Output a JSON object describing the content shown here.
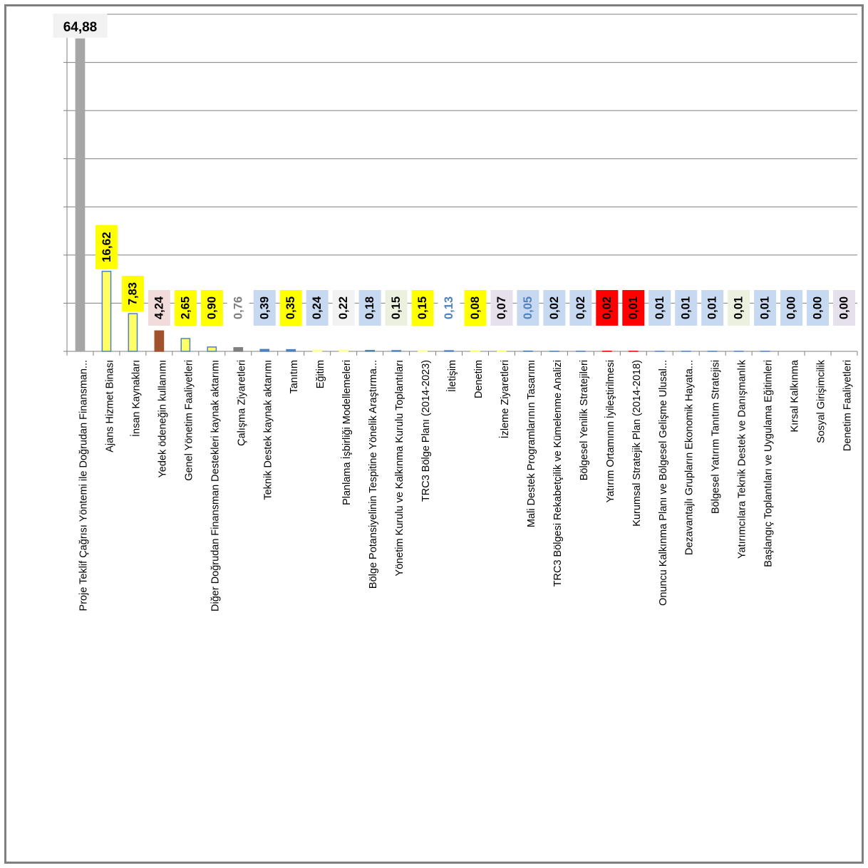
{
  "chart_data": {
    "type": "bar",
    "title": "",
    "xlabel": "",
    "ylabel": "",
    "ylim": [
      0,
      70
    ],
    "grid": true,
    "legend": "none",
    "categories": [
      "Proje Teklif Çağrısı Yöntemi ile Doğrudan Finansman...",
      "Ajans Hizmet Binası",
      "İnsan Kaynakları",
      "Yedek ödeneğin kullanımı",
      "Genel Yönetim Faaliyetleri",
      "Diğer Doğrudan Finansman Destekleri kaynak aktarımı",
      "Çalışma Ziyaretleri",
      "Teknik Destek kaynak aktarımı",
      "Tanıtım",
      "Eğitim",
      "Planlama İşbirliği Modellemeleri",
      "Bölge Potansiyelinin Tespitine Yönelik Araştırma...",
      "Yönetim Kurulu ve Kalkınma Kurulu Toplantıları",
      "TRC3 Bölge Planı (2014-2023)",
      "İletişim",
      "Denetim",
      "İzleme Ziyaretleri",
      "Mali Destek Programlarının Tasarımı",
      "TRC3 Bölgesi Rekabetçilik ve Kümelenme Analizi",
      "Bölgesel Yenilik Stratejileri",
      "Yatırım Ortamının İyileştirilmesi",
      "Kurumsal Stratejik Plan (2014-2018)",
      "Onuncu Kalkınma Planı ve Bölgesel Gelişme Ulusal...",
      "Dezavantajlı Grupların Ekonomik Hayata...",
      "Bölgesel Yatırım Tanıtım Stratejisi",
      "Yatırımcılara Teknik Destek ve Danışmanlık",
      "Başlangıç Toplantıları ve Uygulama Eğitimleri",
      "Kırsal Kalkınma",
      "Sosyal Girişimcilik",
      "Denetim Faaliyetleri"
    ],
    "values": [
      64.88,
      16.62,
      7.83,
      4.24,
      2.65,
      0.9,
      0.76,
      0.39,
      0.35,
      0.24,
      0.22,
      0.18,
      0.15,
      0.15,
      0.13,
      0.08,
      0.07,
      0.05,
      0.02,
      0.02,
      0.02,
      0.01,
      0.01,
      0.01,
      0.01,
      0.01,
      0.01,
      0.0,
      0.0,
      0.0
    ],
    "data_labels": [
      "64,88",
      "16,62",
      "7,83",
      "4,24",
      "2,65",
      "0,90",
      "0,76",
      "0,39",
      "0,35",
      "0,24",
      "0,22",
      "0,18",
      "0,15",
      "0,15",
      "0,13",
      "0,08",
      "0,07",
      "0,05",
      "0,02",
      "0,02",
      "0,02",
      "0,01",
      "0,01",
      "0,01",
      "0,01",
      "0,01",
      "0,01",
      "0,00",
      "0,00",
      "0,00"
    ],
    "bar_fill": [
      "#a6a6a6",
      "#ffff66",
      "#ffff66",
      "#a0522d",
      "#ffff66",
      "#ffff66",
      "#7f7f7f",
      "#4f81bd",
      "#4f81bd",
      "#ffff99",
      "#ffff99",
      "#4f81bd",
      "#4f81bd",
      "#ffff99",
      "#4f81bd",
      "#ffff66",
      "#ffff66",
      "#4f81bd",
      "#4f81bd",
      "#4f81bd",
      "#ff0000",
      "#ff0000",
      "#4f81bd",
      "#4f81bd",
      "#4f81bd",
      "#4f81bd",
      "#4f81bd",
      "#4f81bd",
      "#4f81bd",
      "#4f81bd"
    ],
    "bar_stroke": [
      "#a6a6a6",
      "#4f81bd",
      "#4f81bd",
      "#a0522d",
      "#4f81bd",
      "#4f81bd",
      "#7f7f7f",
      "#4f81bd",
      "#4f81bd",
      "#ffff99",
      "#ffff99",
      "#4f81bd",
      "#4f81bd",
      "#ffff99",
      "#4f81bd",
      "#ffff66",
      "#ffff66",
      "#4f81bd",
      "#4f81bd",
      "#4f81bd",
      "#ff0000",
      "#ff0000",
      "#4f81bd",
      "#4f81bd",
      "#4f81bd",
      "#4f81bd",
      "#4f81bd",
      "#4f81bd",
      "#4f81bd",
      "#4f81bd"
    ],
    "label_bg": [
      "#f2f2f2",
      "#ffff00",
      "#ffff00",
      "#f2dcdb",
      "#ffff00",
      "#ffff00",
      "#ffffff",
      "#c6d9f1",
      "#ffff00",
      "#c6d9f1",
      "#f2f2f2",
      "#c6d9f1",
      "#ebf1de",
      "#ffff00",
      "#ffffff",
      "#ffff00",
      "#e6e0ec",
      "#c6d9f1",
      "#c6d9f1",
      "#c6d9f1",
      "#ff0000",
      "#ff0000",
      "#c6d9f1",
      "#c6d9f1",
      "#c6d9f1",
      "#ebf1de",
      "#c6d9f1",
      "#c6d9f1",
      "#c6d9f1",
      "#e6e0ec"
    ],
    "label_color": [
      "#000000",
      "#000000",
      "#000000",
      "#000000",
      "#000000",
      "#000000",
      "#7f7f7f",
      "#000000",
      "#000000",
      "#000000",
      "#000000",
      "#000000",
      "#000000",
      "#000000",
      "#4f81bd",
      "#000000",
      "#000000",
      "#4f81bd",
      "#000000",
      "#000000",
      "#000000",
      "#000000",
      "#000000",
      "#000000",
      "#000000",
      "#000000",
      "#000000",
      "#000000",
      "#000000",
      "#000000"
    ]
  }
}
